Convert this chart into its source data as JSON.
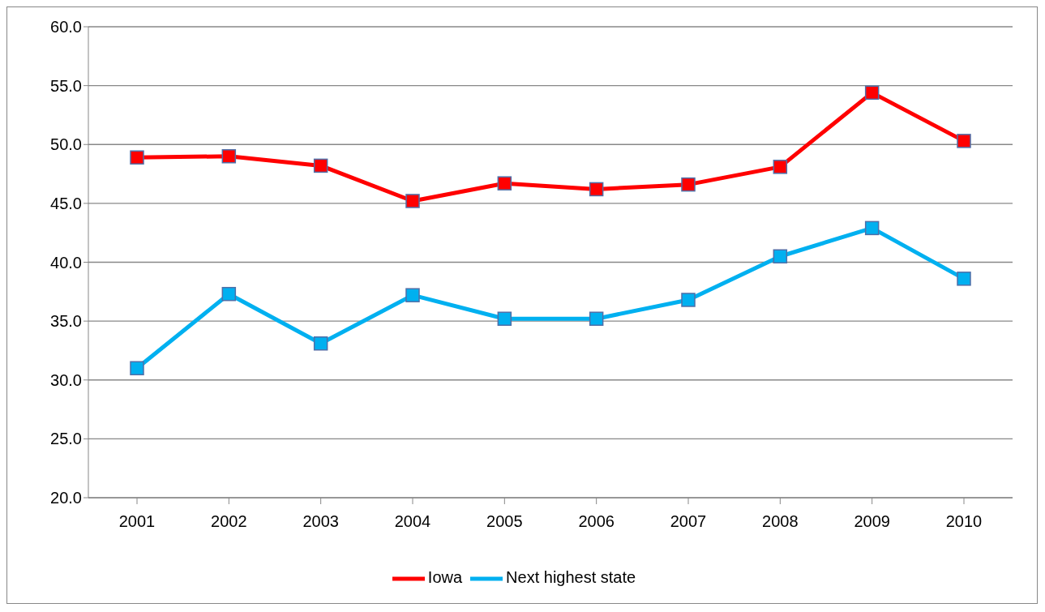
{
  "chart_data": {
    "type": "line",
    "categories": [
      "2001",
      "2002",
      "2003",
      "2004",
      "2005",
      "2006",
      "2007",
      "2008",
      "2009",
      "2010"
    ],
    "series": [
      {
        "name": "Iowa",
        "color": "#ff0000",
        "values": [
          48.9,
          49.0,
          48.2,
          45.2,
          46.7,
          46.2,
          46.6,
          48.1,
          54.4,
          50.3
        ]
      },
      {
        "name": "Next highest state",
        "color": "#00b0f0",
        "values": [
          31.0,
          37.3,
          33.1,
          37.2,
          35.2,
          35.2,
          36.8,
          40.5,
          42.9,
          38.6
        ]
      }
    ],
    "ylim": [
      20,
      60
    ],
    "yticks": [
      {
        "value": 20,
        "label": "20.0"
      },
      {
        "value": 25,
        "label": "25.0"
      },
      {
        "value": 30,
        "label": "30.0"
      },
      {
        "value": 35,
        "label": "35.0"
      },
      {
        "value": 40,
        "label": "40.0"
      },
      {
        "value": 45,
        "label": "45.0"
      },
      {
        "value": 50,
        "label": "50.0"
      },
      {
        "value": 55,
        "label": "55.0"
      },
      {
        "value": 60,
        "label": "60.0"
      }
    ],
    "grid": "y",
    "legend": "bottom",
    "marker": "square",
    "line_style": "solid"
  }
}
